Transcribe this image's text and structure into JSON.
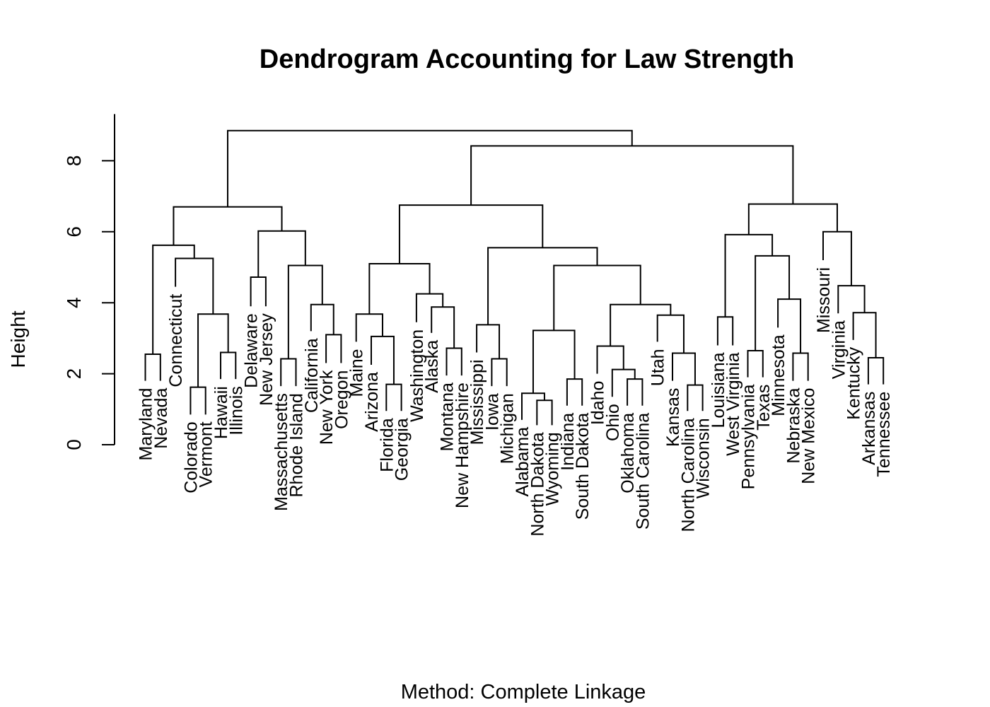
{
  "chart_data": {
    "type": "dendrogram",
    "title": "Dendrogram Accounting for Law Strength",
    "ylabel": "Height",
    "xlabel": "Method: Complete Linkage",
    "ylim": [
      0,
      9
    ],
    "yticks": [
      0,
      2,
      4,
      6,
      8
    ],
    "leaves": [
      {
        "name": "Maryland",
        "start": 1.8
      },
      {
        "name": "Nevada",
        "start": 1.8
      },
      {
        "name": "Connecticut",
        "start": 4.45
      },
      {
        "name": "Colorado",
        "start": 0.85
      },
      {
        "name": "Vermont",
        "start": 0.85
      },
      {
        "name": "Hawaii",
        "start": 1.85
      },
      {
        "name": "Illinois",
        "start": 1.85
      },
      {
        "name": "Delaware",
        "start": 3.9
      },
      {
        "name": "New Jersey",
        "start": 3.9
      },
      {
        "name": "Massachusetts",
        "start": 1.65
      },
      {
        "name": "Rhode Island",
        "start": 1.65
      },
      {
        "name": "California",
        "start": 3.2
      },
      {
        "name": "New York",
        "start": 2.3
      },
      {
        "name": "Oregon",
        "start": 2.3
      },
      {
        "name": "Maine",
        "start": 2.9
      },
      {
        "name": "Arizona",
        "start": 2.25
      },
      {
        "name": "Florida",
        "start": 0.95
      },
      {
        "name": "Georgia",
        "start": 0.95
      },
      {
        "name": "Washington",
        "start": 3.45
      },
      {
        "name": "Alaska",
        "start": 3.15
      },
      {
        "name": "Montana",
        "start": 1.95
      },
      {
        "name": "New Hampshire",
        "start": 1.95
      },
      {
        "name": "Mississippi",
        "start": 2.6
      },
      {
        "name": "Iowa",
        "start": 1.65
      },
      {
        "name": "Michigan",
        "start": 1.65
      },
      {
        "name": "Alabama",
        "start": 0.7
      },
      {
        "name": "North Dakota",
        "start": 0.55
      },
      {
        "name": "Wyoming",
        "start": 0.55
      },
      {
        "name": "Indiana",
        "start": 1.1
      },
      {
        "name": "South Dakota",
        "start": 1.1
      },
      {
        "name": "Idaho",
        "start": 2.0
      },
      {
        "name": "Ohio",
        "start": 1.35
      },
      {
        "name": "Oklahoma",
        "start": 1.1
      },
      {
        "name": "South Carolina",
        "start": 1.1
      },
      {
        "name": "Utah",
        "start": 2.9
      },
      {
        "name": "Kansas",
        "start": 1.8
      },
      {
        "name": "North Carolina",
        "start": 0.95
      },
      {
        "name": "Wisconsin",
        "start": 0.95
      },
      {
        "name": "Louisiana",
        "start": 2.8
      },
      {
        "name": "West Virginia",
        "start": 2.8
      },
      {
        "name": "Pennsylvania",
        "start": 1.9
      },
      {
        "name": "Texas",
        "start": 1.9
      },
      {
        "name": "Minnesota",
        "start": 3.3
      },
      {
        "name": "Nebraska",
        "start": 1.8
      },
      {
        "name": "New Mexico",
        "start": 1.8
      },
      {
        "name": "Missouri",
        "start": 5.2
      },
      {
        "name": "Virginia",
        "start": 3.7
      },
      {
        "name": "Kentucky",
        "start": 2.95
      },
      {
        "name": "Arkansas",
        "start": 1.7
      },
      {
        "name": "Tennessee",
        "start": 1.7
      }
    ],
    "merges": [
      {
        "a": -1,
        "b": -2,
        "height": 2.55
      },
      {
        "a": -4,
        "b": -5,
        "height": 1.62
      },
      {
        "a": -6,
        "b": -7,
        "height": 2.6
      },
      {
        "a": 2,
        "b": 3,
        "height": 3.68
      },
      {
        "a": -3,
        "b": 4,
        "height": 5.25
      },
      {
        "a": 1,
        "b": 5,
        "height": 5.62
      },
      {
        "a": -8,
        "b": -9,
        "height": 4.72
      },
      {
        "a": -10,
        "b": -11,
        "height": 2.42
      },
      {
        "a": -13,
        "b": -14,
        "height": 3.1
      },
      {
        "a": -12,
        "b": 9,
        "height": 3.95
      },
      {
        "a": 8,
        "b": 10,
        "height": 5.05
      },
      {
        "a": 7,
        "b": 11,
        "height": 6.02
      },
      {
        "a": 6,
        "b": 12,
        "height": 6.7
      },
      {
        "a": -17,
        "b": -18,
        "height": 1.7
      },
      {
        "a": -16,
        "b": 14,
        "height": 3.05
      },
      {
        "a": -15,
        "b": 15,
        "height": 3.68
      },
      {
        "a": -21,
        "b": -22,
        "height": 2.72
      },
      {
        "a": -20,
        "b": 17,
        "height": 3.88
      },
      {
        "a": -19,
        "b": 18,
        "height": 4.25
      },
      {
        "a": 16,
        "b": 19,
        "height": 5.1
      },
      {
        "a": -24,
        "b": -25,
        "height": 2.42
      },
      {
        "a": -23,
        "b": 21,
        "height": 3.38
      },
      {
        "a": -27,
        "b": -28,
        "height": 1.25
      },
      {
        "a": -26,
        "b": 23,
        "height": 1.45
      },
      {
        "a": -29,
        "b": -30,
        "height": 1.85
      },
      {
        "a": 24,
        "b": 25,
        "height": 3.22
      },
      {
        "a": -33,
        "b": -34,
        "height": 1.85
      },
      {
        "a": -32,
        "b": 27,
        "height": 2.12
      },
      {
        "a": -31,
        "b": 28,
        "height": 2.78
      },
      {
        "a": -37,
        "b": -38,
        "height": 1.68
      },
      {
        "a": -36,
        "b": 30,
        "height": 2.58
      },
      {
        "a": -35,
        "b": 31,
        "height": 3.65
      },
      {
        "a": 29,
        "b": 32,
        "height": 3.95
      },
      {
        "a": 26,
        "b": 33,
        "height": 5.05
      },
      {
        "a": 22,
        "b": 34,
        "height": 5.55
      },
      {
        "a": 20,
        "b": 35,
        "height": 6.75
      },
      {
        "a": -39,
        "b": -40,
        "height": 3.6
      },
      {
        "a": -41,
        "b": -42,
        "height": 2.65
      },
      {
        "a": -44,
        "b": -45,
        "height": 2.58
      },
      {
        "a": -43,
        "b": 39,
        "height": 4.1
      },
      {
        "a": 38,
        "b": 40,
        "height": 5.32
      },
      {
        "a": 37,
        "b": 41,
        "height": 5.92
      },
      {
        "a": -49,
        "b": -50,
        "height": 2.45
      },
      {
        "a": -48,
        "b": 43,
        "height": 3.72
      },
      {
        "a": -47,
        "b": 44,
        "height": 4.48
      },
      {
        "a": -46,
        "b": 45,
        "height": 6.0
      },
      {
        "a": 42,
        "b": 46,
        "height": 6.78
      },
      {
        "a": 36,
        "b": 47,
        "height": 8.42
      },
      {
        "a": 13,
        "b": 48,
        "height": 8.85
      }
    ]
  }
}
